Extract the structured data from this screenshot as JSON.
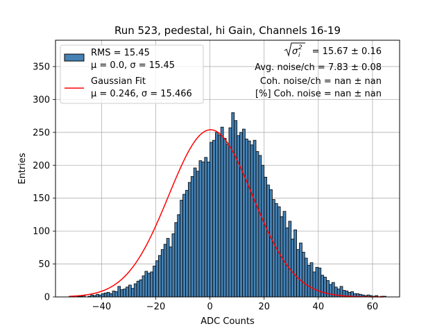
{
  "chart_data": {
    "type": "bar",
    "title": "Run 523, pedestal, hi Gain, Channels 16-19",
    "xlabel": "ADC Counts",
    "ylabel": "Entries",
    "xlim": [
      -57,
      70
    ],
    "ylim": [
      0,
      390
    ],
    "grid": true,
    "xticks": [
      -40,
      -20,
      0,
      20,
      40,
      60
    ],
    "yticks": [
      0,
      50,
      100,
      150,
      200,
      250,
      300,
      350
    ],
    "xtick_labels": [
      "−40",
      "−20",
      "0",
      "20",
      "40",
      "60"
    ],
    "ytick_labels": [
      "0",
      "50",
      "100",
      "150",
      "200",
      "250",
      "300",
      "350"
    ],
    "bin_width": 1,
    "bin_start": -52,
    "histogram_counts": [
      1,
      0,
      0,
      1,
      1,
      2,
      0,
      1,
      3,
      2,
      4,
      3,
      5,
      6,
      7,
      5,
      9,
      8,
      16,
      11,
      12,
      15,
      18,
      13,
      20,
      24,
      26,
      32,
      39,
      36,
      38,
      47,
      55,
      63,
      72,
      80,
      89,
      76,
      96,
      113,
      125,
      147,
      156,
      162,
      174,
      183,
      196,
      191,
      207,
      205,
      212,
      205,
      235,
      238,
      250,
      246,
      258,
      241,
      232,
      257,
      280,
      268,
      245,
      250,
      255,
      240,
      237,
      231,
      238,
      221,
      215,
      200,
      182,
      170,
      163,
      148,
      142,
      137,
      122,
      130,
      105,
      115,
      88,
      102,
      72,
      82,
      68,
      59,
      48,
      52,
      38,
      45,
      44,
      33,
      30,
      25,
      19,
      22,
      15,
      12,
      16,
      10,
      9,
      7,
      8,
      5,
      5,
      4,
      3,
      2,
      3,
      2,
      1,
      2,
      0,
      1,
      1
    ],
    "legend_position": "upper-left",
    "series": [
      {
        "name": "histogram",
        "label_line1": "RMS = 15.45",
        "label_line2": "μ = 0.0, σ = 15.45",
        "color": "#4682b4",
        "edgecolor": "#000000"
      },
      {
        "name": "gaussian_fit",
        "label_line1": "Gaussian Fit",
        "label_line2": "μ = 0.246, σ = 15.466",
        "color": "#ff0000",
        "mu": 0.246,
        "sigma": 15.466,
        "amplitude": 254
      }
    ],
    "annotations": [
      "= 15.67 ± 0.16",
      "Avg. noise/ch = 7.83 ± 0.08",
      "Coh. noise/ch = nan ± nan",
      "[%] Coh. noise = nan ± nan"
    ]
  }
}
